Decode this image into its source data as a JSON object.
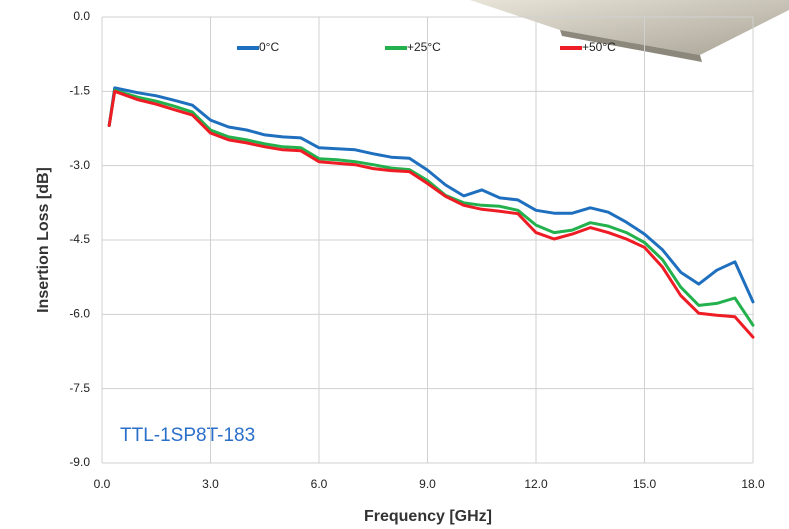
{
  "chart_data": {
    "type": "line",
    "x": [
      0.2,
      0.35,
      1,
      1.5,
      2,
      2.5,
      3,
      3.5,
      4,
      4.5,
      5,
      5.5,
      6,
      6.5,
      7,
      7.5,
      8,
      8.5,
      9,
      9.5,
      10,
      10.5,
      11,
      11.5,
      12,
      12.5,
      13,
      13.5,
      14,
      14.5,
      15,
      15.5,
      16,
      16.5,
      17,
      17.5,
      18
    ],
    "series": [
      {
        "name": "0°C",
        "color": "#1f6fbf",
        "values": [
          -2.19,
          -1.43,
          -1.53,
          -1.59,
          -1.68,
          -1.78,
          -2.08,
          -2.22,
          -2.28,
          -2.38,
          -2.42,
          -2.44,
          -2.64,
          -2.66,
          -2.68,
          -2.76,
          -2.83,
          -2.85,
          -3.09,
          -3.39,
          -3.61,
          -3.49,
          -3.65,
          -3.69,
          -3.9,
          -3.96,
          -3.96,
          -3.85,
          -3.94,
          -4.14,
          -4.38,
          -4.7,
          -5.15,
          -5.39,
          -5.11,
          -4.94,
          -5.75
        ]
      },
      {
        "name": "+25°C",
        "color": "#22b14c",
        "values": [
          -2.19,
          -1.48,
          -1.62,
          -1.7,
          -1.8,
          -1.92,
          -2.28,
          -2.42,
          -2.48,
          -2.56,
          -2.62,
          -2.64,
          -2.86,
          -2.88,
          -2.92,
          -2.98,
          -3.05,
          -3.08,
          -3.3,
          -3.6,
          -3.75,
          -3.8,
          -3.82,
          -3.9,
          -4.2,
          -4.35,
          -4.3,
          -4.15,
          -4.22,
          -4.35,
          -4.55,
          -4.9,
          -5.45,
          -5.82,
          -5.78,
          -5.67,
          -6.22
        ]
      },
      {
        "name": "+50°C",
        "color": "#ee1c24",
        "values": [
          -2.19,
          -1.5,
          -1.67,
          -1.76,
          -1.87,
          -1.98,
          -2.34,
          -2.48,
          -2.54,
          -2.62,
          -2.68,
          -2.7,
          -2.92,
          -2.95,
          -2.98,
          -3.06,
          -3.1,
          -3.12,
          -3.36,
          -3.62,
          -3.8,
          -3.88,
          -3.92,
          -3.97,
          -4.35,
          -4.48,
          -4.38,
          -4.25,
          -4.35,
          -4.48,
          -4.65,
          -5.05,
          -5.62,
          -5.98,
          -6.02,
          -6.05,
          -6.46
        ]
      }
    ],
    "xlabel": "Frequency [GHz]",
    "ylabel": "Insertion Loss [dB]",
    "annotation": "TTL-1SP8T-183",
    "xlim": [
      0,
      18
    ],
    "xticks": [
      {
        "value": 0,
        "label": "0.0"
      },
      {
        "value": 3,
        "label": "3.0"
      },
      {
        "value": 6,
        "label": "6.0"
      },
      {
        "value": 9,
        "label": "9.0"
      },
      {
        "value": 12,
        "label": "12.0"
      },
      {
        "value": 15,
        "label": "15.0"
      },
      {
        "value": 18,
        "label": "18.0"
      }
    ],
    "ylim": [
      -9,
      0
    ],
    "yticks": [
      {
        "value": 0,
        "label": "0.0"
      },
      -1.5,
      {
        "value": -3,
        "label": "-3.0"
      },
      -4.5,
      {
        "value": -6,
        "label": "-6.0"
      },
      -7.5,
      {
        "value": -9,
        "label": "-9.0"
      }
    ],
    "grid": true,
    "legend": "top"
  }
}
